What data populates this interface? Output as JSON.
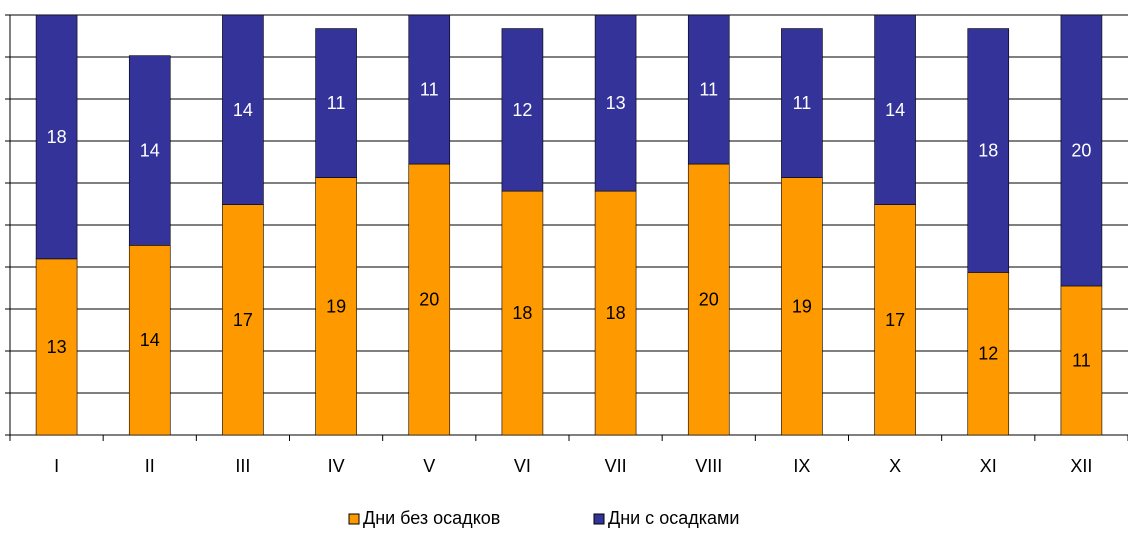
{
  "chart_data": {
    "type": "bar",
    "stacked": true,
    "categories": [
      "I",
      "II",
      "III",
      "IV",
      "V",
      "VI",
      "VII",
      "VIII",
      "IX",
      "X",
      "XI",
      "XII"
    ],
    "series": [
      {
        "name": "Дни без осадков",
        "values": [
          13,
          14,
          17,
          19,
          20,
          18,
          18,
          20,
          19,
          17,
          12,
          11
        ],
        "color": "#FF9900"
      },
      {
        "name": "Дни с осадками",
        "values": [
          18,
          14,
          14,
          11,
          11,
          12,
          13,
          11,
          11,
          14,
          18,
          20
        ],
        "color": "#333399"
      }
    ],
    "ylim": [
      0,
      31
    ],
    "grid": true,
    "legend_position": "bottom"
  }
}
